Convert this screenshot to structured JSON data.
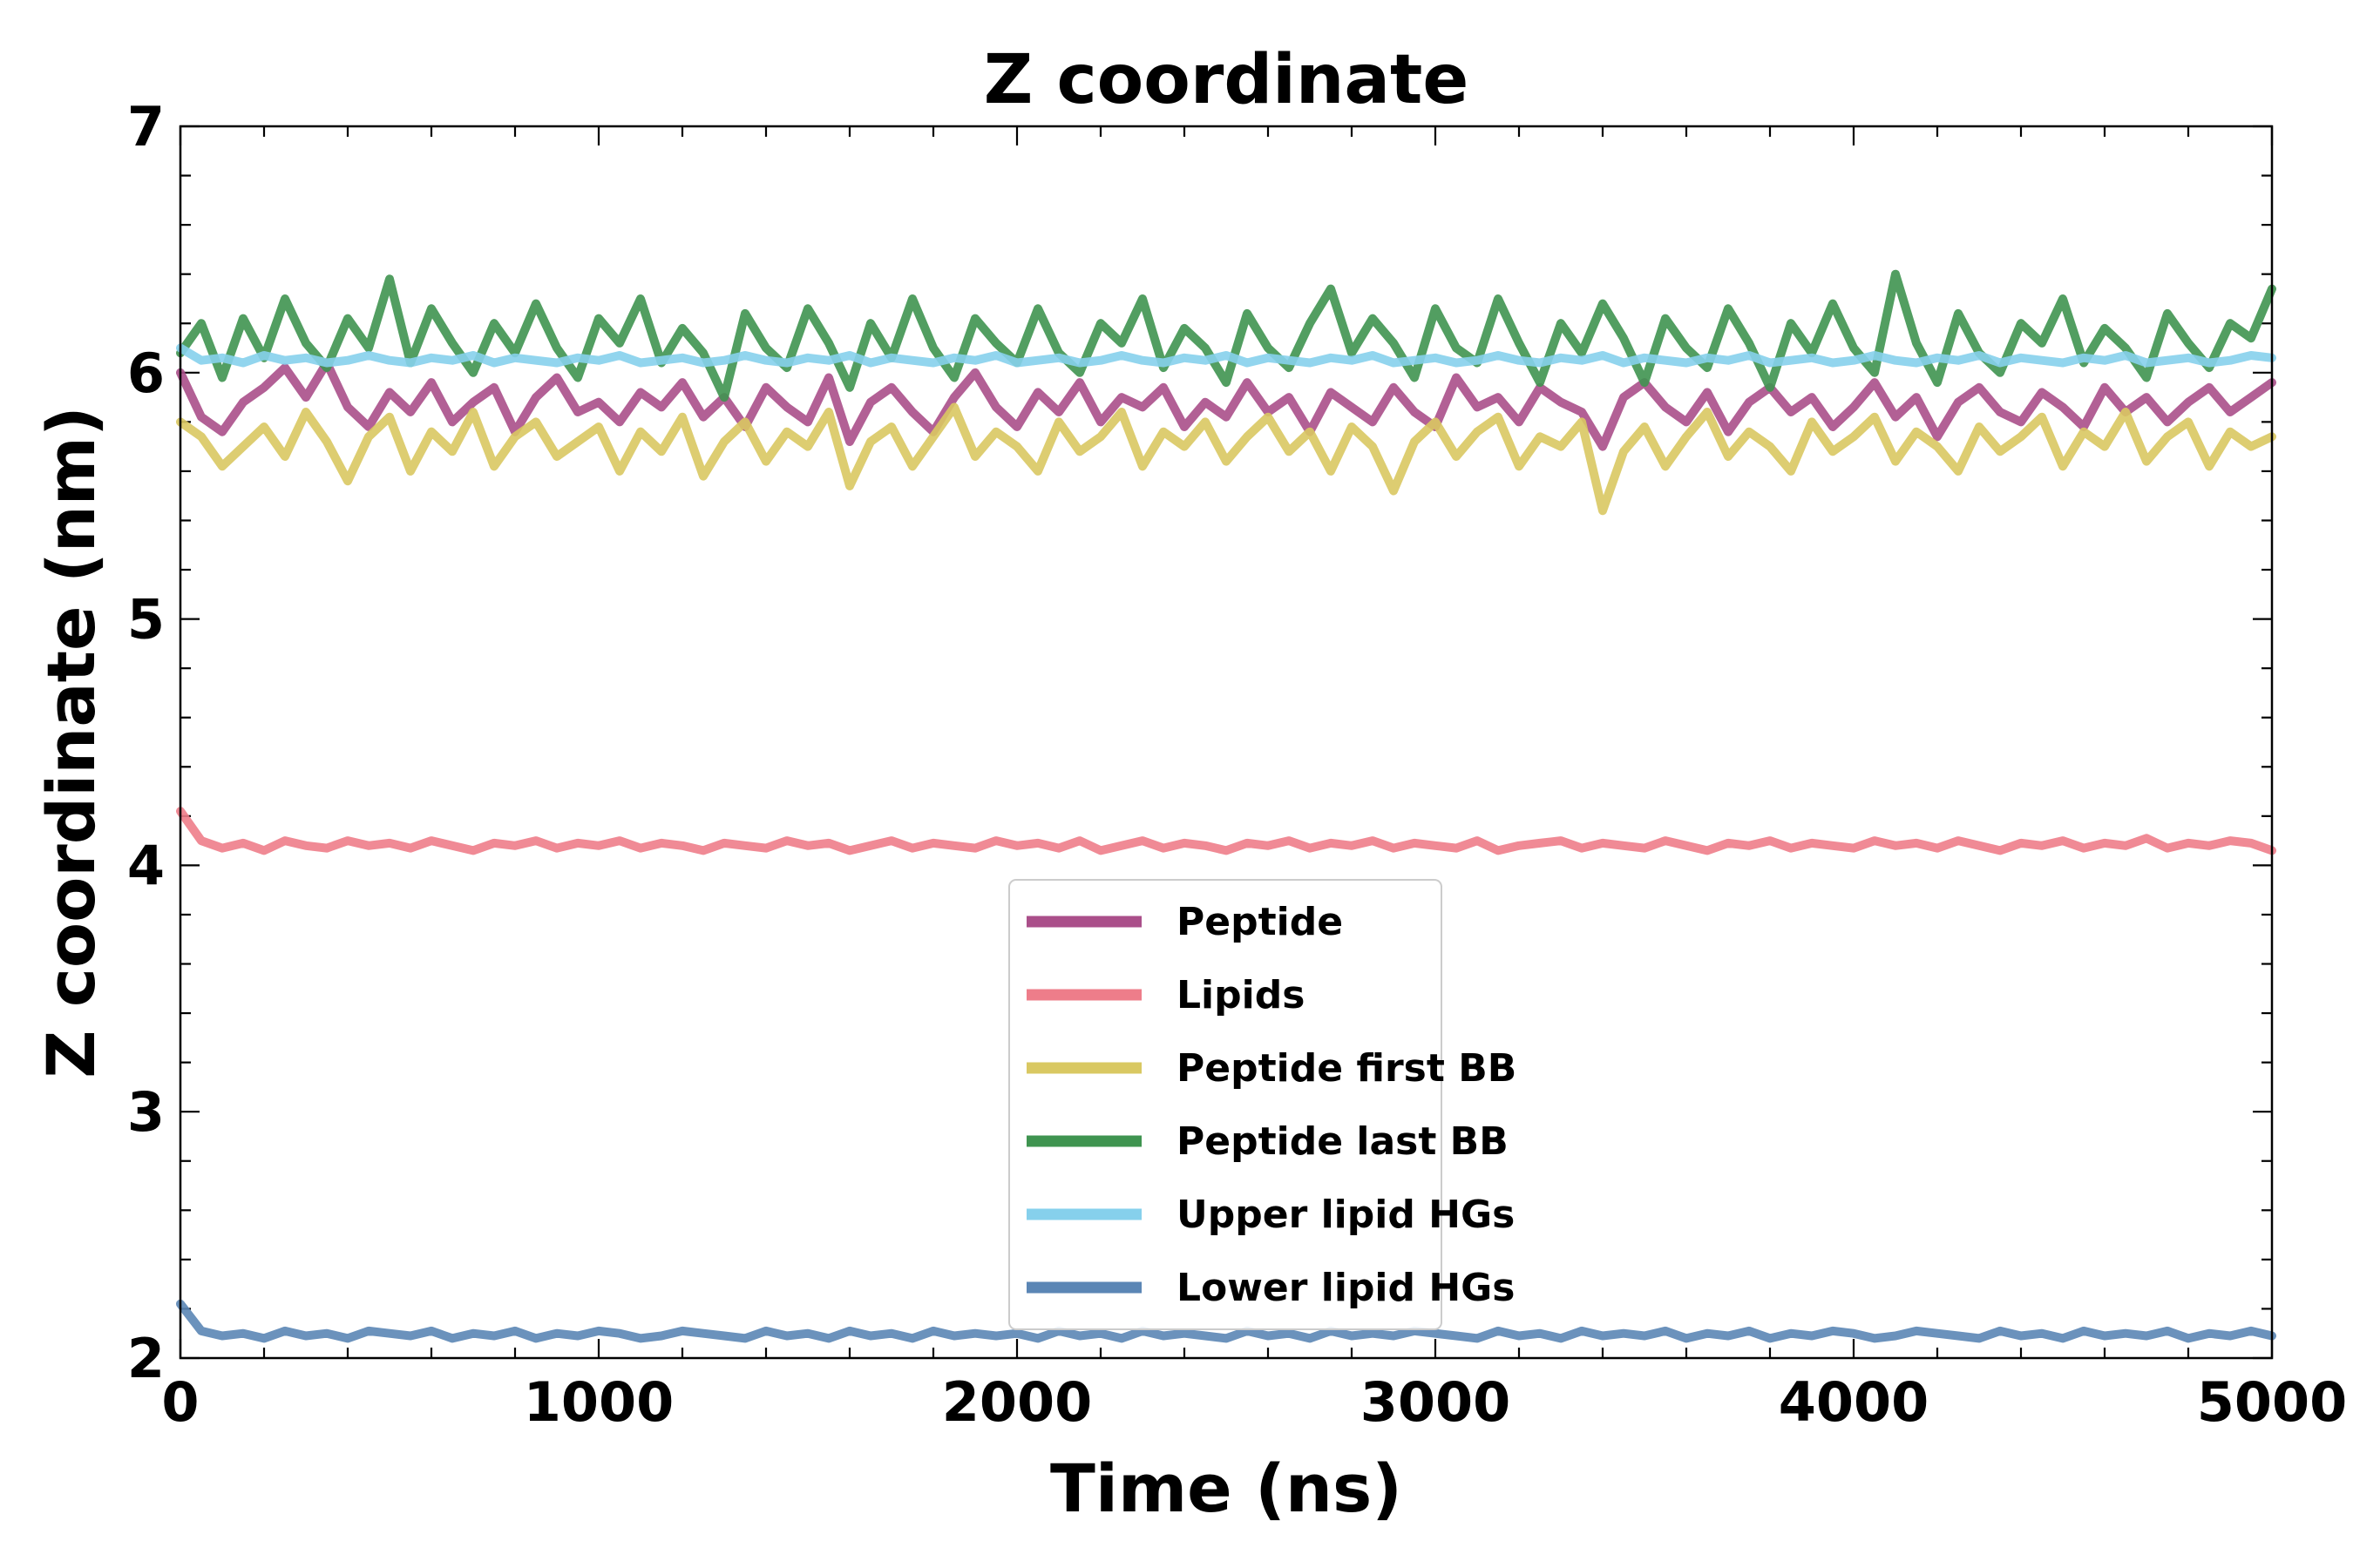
{
  "chart_data": {
    "type": "line",
    "title": "Z coordinate",
    "xlabel": "Time (ns)",
    "ylabel": "Z coordinate (nm)",
    "xlim": [
      0,
      5000
    ],
    "ylim": [
      2,
      7
    ],
    "xticks": [
      0,
      1000,
      2000,
      3000,
      4000,
      5000
    ],
    "yticks": [
      2,
      3,
      4,
      5,
      6,
      7
    ],
    "x_minor_step": 200,
    "y_minor_step": 0.2,
    "grid": false,
    "legend_position": "lower center",
    "x": [
      0,
      50,
      100,
      150,
      200,
      250,
      300,
      350,
      400,
      450,
      500,
      550,
      600,
      650,
      700,
      750,
      800,
      850,
      900,
      950,
      1000,
      1050,
      1100,
      1150,
      1200,
      1250,
      1300,
      1350,
      1400,
      1450,
      1500,
      1550,
      1600,
      1650,
      1700,
      1750,
      1800,
      1850,
      1900,
      1950,
      2000,
      2050,
      2100,
      2150,
      2200,
      2250,
      2300,
      2350,
      2400,
      2450,
      2500,
      2550,
      2600,
      2650,
      2700,
      2750,
      2800,
      2850,
      2900,
      2950,
      3000,
      3050,
      3100,
      3150,
      3200,
      3250,
      3300,
      3350,
      3400,
      3450,
      3500,
      3550,
      3600,
      3650,
      3700,
      3750,
      3800,
      3850,
      3900,
      3950,
      4000,
      4050,
      4100,
      4150,
      4200,
      4250,
      4300,
      4350,
      4400,
      4450,
      4500,
      4550,
      4600,
      4650,
      4700,
      4750,
      4800,
      4850,
      4900,
      4950,
      5000
    ],
    "series": [
      {
        "name": "Peptide",
        "color": "#aa4f8a",
        "values": [
          6.0,
          5.82,
          5.76,
          5.88,
          5.94,
          6.02,
          5.9,
          6.04,
          5.86,
          5.78,
          5.92,
          5.84,
          5.96,
          5.8,
          5.88,
          5.94,
          5.76,
          5.9,
          5.98,
          5.84,
          5.88,
          5.8,
          5.92,
          5.86,
          5.96,
          5.82,
          5.9,
          5.78,
          5.94,
          5.86,
          5.8,
          5.98,
          5.72,
          5.88,
          5.94,
          5.84,
          5.76,
          5.9,
          6.0,
          5.86,
          5.78,
          5.92,
          5.84,
          5.96,
          5.8,
          5.9,
          5.86,
          5.94,
          5.78,
          5.88,
          5.82,
          5.96,
          5.84,
          5.9,
          5.76,
          5.92,
          5.86,
          5.8,
          5.94,
          5.84,
          5.78,
          5.98,
          5.86,
          5.9,
          5.8,
          5.94,
          5.88,
          5.84,
          5.7,
          5.9,
          5.96,
          5.86,
          5.8,
          5.92,
          5.76,
          5.88,
          5.94,
          5.84,
          5.9,
          5.78,
          5.86,
          5.96,
          5.82,
          5.9,
          5.74,
          5.88,
          5.94,
          5.84,
          5.8,
          5.92,
          5.86,
          5.78,
          5.94,
          5.84,
          5.9,
          5.8,
          5.88,
          5.94,
          5.84,
          5.9,
          5.96
        ]
      },
      {
        "name": "Lipids",
        "color": "#ee7d8a",
        "values": [
          4.22,
          4.1,
          4.07,
          4.09,
          4.06,
          4.1,
          4.08,
          4.07,
          4.1,
          4.08,
          4.09,
          4.07,
          4.1,
          4.08,
          4.06,
          4.09,
          4.08,
          4.1,
          4.07,
          4.09,
          4.08,
          4.1,
          4.07,
          4.09,
          4.08,
          4.06,
          4.09,
          4.08,
          4.07,
          4.1,
          4.08,
          4.09,
          4.06,
          4.08,
          4.1,
          4.07,
          4.09,
          4.08,
          4.07,
          4.1,
          4.08,
          4.09,
          4.07,
          4.1,
          4.06,
          4.08,
          4.1,
          4.07,
          4.09,
          4.08,
          4.06,
          4.09,
          4.08,
          4.1,
          4.07,
          4.09,
          4.08,
          4.1,
          4.07,
          4.09,
          4.08,
          4.07,
          4.1,
          4.06,
          4.08,
          4.09,
          4.1,
          4.07,
          4.09,
          4.08,
          4.07,
          4.1,
          4.08,
          4.06,
          4.09,
          4.08,
          4.1,
          4.07,
          4.09,
          4.08,
          4.07,
          4.1,
          4.08,
          4.09,
          4.07,
          4.1,
          4.08,
          4.06,
          4.09,
          4.08,
          4.1,
          4.07,
          4.09,
          4.08,
          4.11,
          4.07,
          4.09,
          4.08,
          4.1,
          4.09,
          4.06
        ]
      },
      {
        "name": "Peptide first BB",
        "color": "#d9c862",
        "values": [
          5.8,
          5.74,
          5.62,
          5.7,
          5.78,
          5.66,
          5.84,
          5.72,
          5.56,
          5.74,
          5.82,
          5.6,
          5.76,
          5.68,
          5.84,
          5.62,
          5.74,
          5.8,
          5.66,
          5.72,
          5.78,
          5.6,
          5.76,
          5.68,
          5.82,
          5.58,
          5.72,
          5.8,
          5.64,
          5.76,
          5.7,
          5.84,
          5.54,
          5.72,
          5.78,
          5.62,
          5.74,
          5.86,
          5.66,
          5.76,
          5.7,
          5.6,
          5.8,
          5.68,
          5.74,
          5.84,
          5.62,
          5.76,
          5.7,
          5.8,
          5.64,
          5.74,
          5.82,
          5.68,
          5.76,
          5.6,
          5.78,
          5.7,
          5.52,
          5.72,
          5.8,
          5.66,
          5.76,
          5.82,
          5.62,
          5.74,
          5.7,
          5.8,
          5.44,
          5.68,
          5.78,
          5.62,
          5.74,
          5.84,
          5.66,
          5.76,
          5.7,
          5.6,
          5.8,
          5.68,
          5.74,
          5.82,
          5.64,
          5.76,
          5.7,
          5.6,
          5.78,
          5.68,
          5.74,
          5.82,
          5.62,
          5.76,
          5.7,
          5.84,
          5.64,
          5.74,
          5.8,
          5.62,
          5.76,
          5.7,
          5.74
        ]
      },
      {
        "name": "Peptide last BB",
        "color": "#3f9450",
        "values": [
          6.08,
          6.2,
          5.98,
          6.22,
          6.06,
          6.3,
          6.12,
          6.02,
          6.22,
          6.1,
          6.38,
          6.04,
          6.26,
          6.12,
          6.0,
          6.2,
          6.08,
          6.28,
          6.1,
          5.98,
          6.22,
          6.12,
          6.3,
          6.04,
          6.18,
          6.08,
          5.9,
          6.24,
          6.1,
          6.02,
          6.26,
          6.12,
          5.94,
          6.2,
          6.06,
          6.3,
          6.1,
          5.98,
          6.22,
          6.12,
          6.04,
          6.26,
          6.08,
          6.0,
          6.2,
          6.12,
          6.3,
          6.02,
          6.18,
          6.1,
          5.96,
          6.24,
          6.1,
          6.02,
          6.2,
          6.34,
          6.08,
          6.22,
          6.12,
          5.98,
          6.26,
          6.1,
          6.04,
          6.3,
          6.12,
          5.96,
          6.2,
          6.08,
          6.28,
          6.14,
          5.96,
          6.22,
          6.1,
          6.02,
          6.26,
          6.12,
          5.94,
          6.2,
          6.08,
          6.28,
          6.1,
          6.0,
          6.4,
          6.12,
          5.96,
          6.24,
          6.08,
          6.0,
          6.2,
          6.12,
          6.3,
          6.04,
          6.18,
          6.1,
          5.98,
          6.24,
          6.12,
          6.02,
          6.2,
          6.14,
          6.34
        ]
      },
      {
        "name": "Upper lipid HGs",
        "color": "#86d0ec",
        "values": [
          6.1,
          6.05,
          6.06,
          6.04,
          6.07,
          6.05,
          6.06,
          6.04,
          6.05,
          6.07,
          6.05,
          6.04,
          6.06,
          6.05,
          6.07,
          6.04,
          6.06,
          6.05,
          6.04,
          6.06,
          6.05,
          6.07,
          6.04,
          6.05,
          6.06,
          6.04,
          6.05,
          6.07,
          6.05,
          6.04,
          6.06,
          6.05,
          6.07,
          6.04,
          6.06,
          6.05,
          6.04,
          6.06,
          6.05,
          6.07,
          6.04,
          6.05,
          6.06,
          6.04,
          6.05,
          6.07,
          6.05,
          6.04,
          6.06,
          6.05,
          6.07,
          6.04,
          6.06,
          6.05,
          6.04,
          6.06,
          6.05,
          6.07,
          6.04,
          6.05,
          6.06,
          6.04,
          6.05,
          6.07,
          6.05,
          6.04,
          6.06,
          6.05,
          6.07,
          6.04,
          6.06,
          6.05,
          6.04,
          6.06,
          6.05,
          6.07,
          6.04,
          6.05,
          6.06,
          6.04,
          6.05,
          6.07,
          6.05,
          6.04,
          6.06,
          6.05,
          6.07,
          6.04,
          6.06,
          6.05,
          6.04,
          6.06,
          6.05,
          6.07,
          6.04,
          6.05,
          6.06,
          6.04,
          6.05,
          6.07,
          6.06
        ]
      },
      {
        "name": "Lower lipid HGs",
        "color": "#5b86b5",
        "values": [
          2.22,
          2.11,
          2.09,
          2.1,
          2.08,
          2.11,
          2.09,
          2.1,
          2.08,
          2.11,
          2.1,
          2.09,
          2.11,
          2.08,
          2.1,
          2.09,
          2.11,
          2.08,
          2.1,
          2.09,
          2.11,
          2.1,
          2.08,
          2.09,
          2.11,
          2.1,
          2.09,
          2.08,
          2.11,
          2.09,
          2.1,
          2.08,
          2.11,
          2.09,
          2.1,
          2.08,
          2.11,
          2.09,
          2.1,
          2.09,
          2.1,
          2.08,
          2.11,
          2.09,
          2.1,
          2.08,
          2.11,
          2.09,
          2.1,
          2.09,
          2.08,
          2.11,
          2.09,
          2.1,
          2.08,
          2.11,
          2.09,
          2.1,
          2.09,
          2.11,
          2.1,
          2.09,
          2.08,
          2.11,
          2.09,
          2.1,
          2.08,
          2.11,
          2.09,
          2.1,
          2.09,
          2.11,
          2.08,
          2.1,
          2.09,
          2.11,
          2.08,
          2.1,
          2.09,
          2.11,
          2.1,
          2.08,
          2.09,
          2.11,
          2.1,
          2.09,
          2.08,
          2.11,
          2.09,
          2.1,
          2.08,
          2.11,
          2.09,
          2.1,
          2.09,
          2.11,
          2.08,
          2.1,
          2.09,
          2.11,
          2.09
        ]
      }
    ]
  }
}
